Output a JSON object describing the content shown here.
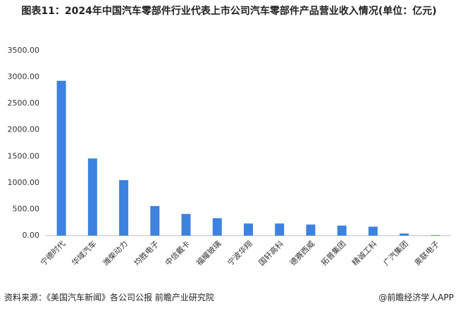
{
  "chart_data": {
    "type": "bar",
    "title": "图表11：2024年中国汽车零部件行业代表上市公司汽车零部件产品营业收入情况(单位：亿元)",
    "categories": [
      "宁德时代",
      "华域汽车",
      "潍柴动力",
      "均胜电子",
      "中信戴卡",
      "福耀玻璃",
      "宁波华翔",
      "国轩高科",
      "德赛西威",
      "拓普集团",
      "精诚工科",
      "广汽集团",
      "奥联电子"
    ],
    "values": [
      2930,
      1460,
      1050,
      560,
      410,
      330,
      230,
      230,
      210,
      190,
      170,
      40,
      10
    ],
    "color": "#3d82df",
    "ylim": [
      0,
      3500
    ],
    "yticks": [
      {
        "value": 0,
        "label": "0.00"
      },
      {
        "value": 500,
        "label": "500.00"
      },
      {
        "value": 1000,
        "label": "1000.00"
      },
      {
        "value": 1500,
        "label": "1500.00"
      },
      {
        "value": 2000,
        "label": "2000.00"
      },
      {
        "value": 2500,
        "label": "2500.00"
      },
      {
        "value": 3000,
        "label": "3000.00"
      },
      {
        "value": 3500,
        "label": "3500.00"
      }
    ],
    "grid": false,
    "source": "资料来源：《美国汽车新闻》各公司公报 前瞻产业研究院",
    "brand": "@前瞻经济学人APP"
  }
}
